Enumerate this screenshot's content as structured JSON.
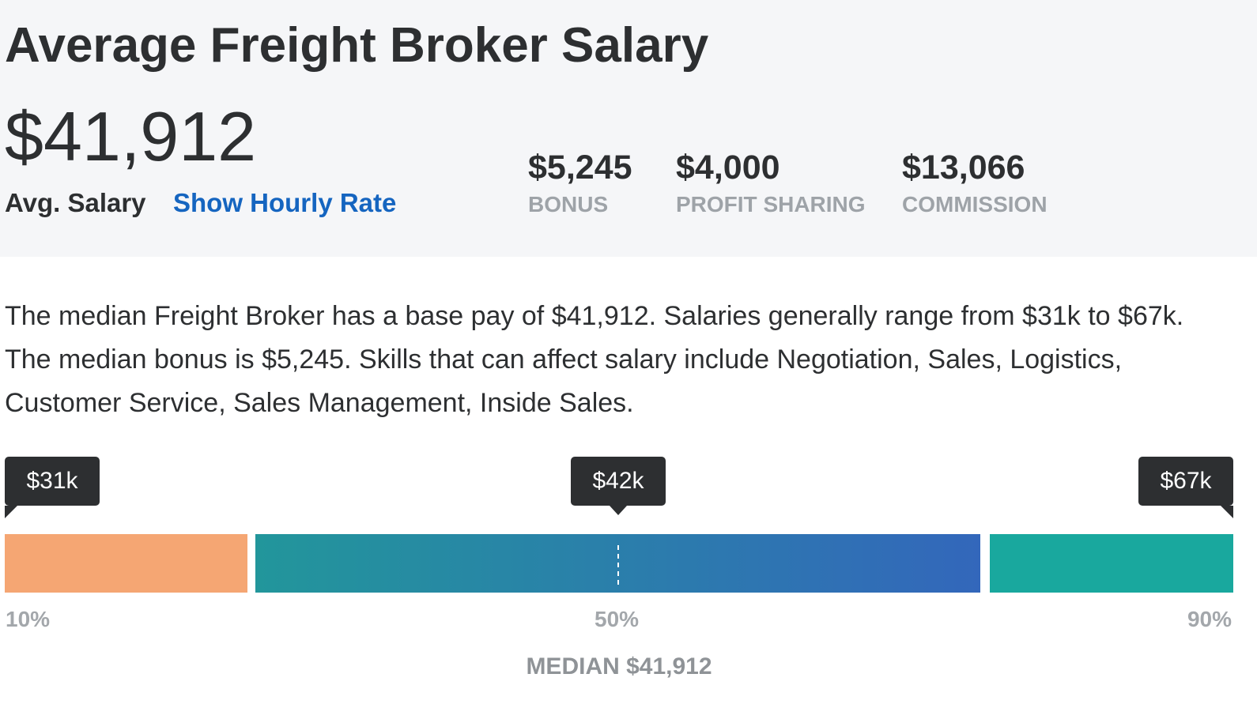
{
  "header": {
    "title": "Average Freight Broker Salary",
    "salary": "$41,912",
    "salary_label": "Avg. Salary",
    "link": "Show Hourly Rate",
    "stats": [
      {
        "value": "$5,245",
        "label": "BONUS"
      },
      {
        "value": "$4,000",
        "label": "PROFIT SHARING"
      },
      {
        "value": "$13,066",
        "label": "COMMISSION"
      }
    ]
  },
  "description": "The median Freight Broker has a base pay of $41,912. Salaries generally range from $31k to $67k. The median bonus is $5,245. Skills that can affect salary include Negotiation, Sales, Logistics, Customer Service, Sales Management, Inside Sales.",
  "range": {
    "markers": [
      {
        "label": "$31k",
        "percentile": "10%"
      },
      {
        "label": "$42k",
        "percentile": "50%"
      },
      {
        "label": "$67k",
        "percentile": "90%"
      }
    ],
    "median": "MEDIAN $41,912"
  }
}
